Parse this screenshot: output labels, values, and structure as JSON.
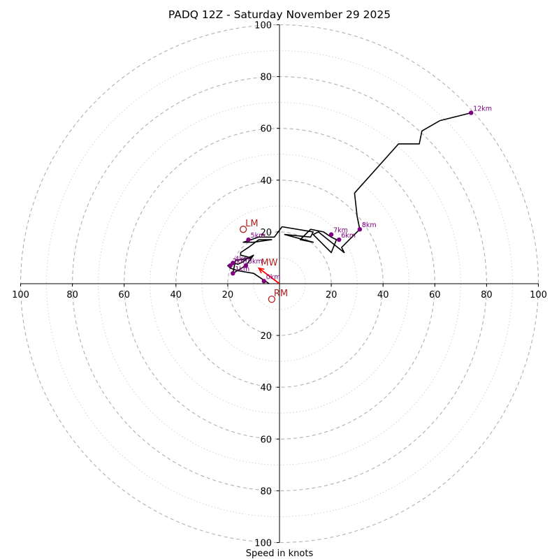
{
  "chart_data": {
    "type": "hodograph",
    "title": "PADQ 12Z - Saturday November 29 2025",
    "xlabel": "Speed in knots",
    "range": [
      -100,
      100
    ],
    "ring_interval_major": 20,
    "ring_interval_minor": 10,
    "x_tick_labels": [
      "100",
      "80",
      "60",
      "40",
      "20",
      "20",
      "40",
      "60",
      "80",
      "100"
    ],
    "y_tick_labels": [
      "100",
      "80",
      "60",
      "40",
      "20",
      "20",
      "40",
      "60",
      "80",
      "100"
    ],
    "tick_values": [
      -100,
      -80,
      -60,
      -40,
      -20,
      20,
      40,
      60,
      80,
      100
    ],
    "hodograph_trace": [
      [
        -4,
        0
      ],
      [
        -10,
        4
      ],
      [
        -16,
        5
      ],
      [
        -19,
        6
      ],
      [
        -20,
        7
      ],
      [
        -18,
        8
      ],
      [
        -16,
        7.5
      ],
      [
        -14,
        8.5
      ],
      [
        -12,
        10
      ],
      [
        -10,
        11
      ],
      [
        -13,
        7
      ],
      [
        -18,
        4
      ],
      [
        -17,
        9
      ],
      [
        -11,
        10
      ],
      [
        -15,
        11
      ],
      [
        -15,
        12
      ],
      [
        -12,
        14
      ],
      [
        -8,
        17
      ],
      [
        -3,
        17
      ],
      [
        -10,
        16
      ],
      [
        -14,
        16
      ],
      [
        -8,
        18
      ],
      [
        -2,
        18
      ],
      [
        1,
        22
      ],
      [
        13,
        20
      ],
      [
        12,
        18
      ],
      [
        2,
        19
      ],
      [
        13,
        16
      ],
      [
        8,
        17
      ],
      [
        12,
        21
      ],
      [
        17,
        20
      ],
      [
        20,
        18
      ],
      [
        22,
        17
      ],
      [
        20,
        12
      ],
      [
        17,
        15
      ],
      [
        13,
        19
      ],
      [
        15,
        20
      ],
      [
        25,
        12
      ],
      [
        24,
        14
      ],
      [
        29,
        19
      ],
      [
        31,
        21
      ],
      [
        30,
        26
      ],
      [
        29,
        35
      ],
      [
        46,
        54
      ],
      [
        54,
        54
      ],
      [
        55,
        59
      ],
      [
        62,
        63
      ],
      [
        74,
        66
      ]
    ],
    "height_markers": [
      {
        "label": "0km",
        "u": -6,
        "v": 1
      },
      {
        "label": "1km",
        "u": -18,
        "v": 4
      },
      {
        "label": "2km",
        "u": -19,
        "v": 7
      },
      {
        "label": "3km",
        "u": -13,
        "v": 7
      },
      {
        "label": "4km",
        "u": -18,
        "v": 8
      },
      {
        "label": "5km",
        "u": -12,
        "v": 17
      },
      {
        "label": "6km",
        "u": 23,
        "v": 17
      },
      {
        "label": "7km",
        "u": 20,
        "v": 19
      },
      {
        "label": "8km",
        "u": 31,
        "v": 21
      },
      {
        "label": "12km",
        "u": 74,
        "v": 66
      }
    ],
    "storm_motion": {
      "MW": {
        "label": "MW",
        "u": -8,
        "v": 6
      },
      "LM": {
        "label": "LM",
        "u": -14,
        "v": 21
      },
      "RM": {
        "label": "RM",
        "u": -3,
        "v": -6
      }
    },
    "colors": {
      "trace": "#000000",
      "marker": "#800080",
      "storm_motion": "#b22222",
      "arrow": "#ff0000",
      "ring": "#b0b0b0"
    }
  }
}
